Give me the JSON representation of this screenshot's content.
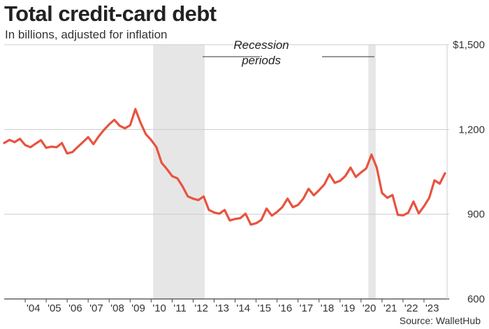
{
  "header": {
    "title": "Total credit-card debt",
    "subtitle": "In billions, adjusted for inflation"
  },
  "footer": {
    "source": "Source: WalletHub"
  },
  "colors": {
    "line": "#e8533f",
    "recession": "#e6e6e6",
    "grid": "#cccccc",
    "axis": "#444444"
  },
  "chart_data": {
    "type": "line",
    "title": "Total credit-card debt",
    "subtitle": "In billions, adjusted for inflation",
    "xlabel": "",
    "ylabel": "",
    "ylim": [
      600,
      1500
    ],
    "xlim": [
      2003.0,
      2024.1
    ],
    "y_ticks": [
      1500,
      1200,
      900,
      600
    ],
    "y_tick_labels": [
      "$1,500",
      "1,200",
      "900",
      "600"
    ],
    "x_ticks": [
      2004,
      2005,
      2006,
      2007,
      2008,
      2009,
      2010,
      2011,
      2012,
      2013,
      2014,
      2015,
      2016,
      2017,
      2018,
      2019,
      2020,
      2021,
      2022,
      2023
    ],
    "x_tick_labels": [
      "'04",
      "'05",
      "'06",
      "'07",
      "'08",
      "'09",
      "'10",
      "'11",
      "'12",
      "'13",
      "'14",
      "'15",
      "'16",
      "'17",
      "'18",
      "'19",
      "'20",
      "'21",
      "'22",
      "'23"
    ],
    "grid": true,
    "legend": "none",
    "recessions": [
      {
        "start": 2010.1,
        "end": 2012.55
      },
      {
        "start": 2020.35,
        "end": 2020.7
      }
    ],
    "annotations": [
      {
        "text_lines": [
          "Recession",
          "periods"
        ],
        "x": 2015.25,
        "y": 1470
      }
    ],
    "series": [
      {
        "x": [
          2003.0,
          2003.25,
          2003.5,
          2003.75,
          2004.0,
          2004.25,
          2004.5,
          2004.75,
          2005.0,
          2005.25,
          2005.5,
          2005.75,
          2006.0,
          2006.25,
          2006.5,
          2006.75,
          2007.0,
          2007.25,
          2007.5,
          2007.75,
          2008.0,
          2008.25,
          2008.5,
          2008.75,
          2009.0,
          2009.25,
          2009.5,
          2009.75,
          2010.0,
          2010.25,
          2010.5,
          2010.75,
          2011.0,
          2011.25,
          2011.5,
          2011.75,
          2012.0,
          2012.25,
          2012.5,
          2012.75,
          2013.0,
          2013.25,
          2013.5,
          2013.75,
          2014.0,
          2014.25,
          2014.5,
          2014.75,
          2015.0,
          2015.25,
          2015.5,
          2015.75,
          2016.0,
          2016.25,
          2016.5,
          2016.75,
          2017.0,
          2017.25,
          2017.5,
          2017.75,
          2018.0,
          2018.25,
          2018.5,
          2018.75,
          2019.0,
          2019.25,
          2019.5,
          2019.75,
          2020.0,
          2020.25,
          2020.5,
          2020.75,
          2021.0,
          2021.25,
          2021.5,
          2021.75,
          2022.0,
          2022.25,
          2022.5,
          2022.75,
          2023.0,
          2023.25,
          2023.5,
          2023.75,
          2024.0
        ],
        "values": [
          1152,
          1163,
          1155,
          1167,
          1145,
          1137,
          1150,
          1162,
          1135,
          1139,
          1137,
          1152,
          1115,
          1120,
          1138,
          1155,
          1173,
          1148,
          1175,
          1198,
          1218,
          1234,
          1213,
          1204,
          1215,
          1272,
          1223,
          1183,
          1163,
          1138,
          1082,
          1060,
          1035,
          1027,
          998,
          963,
          955,
          950,
          963,
          915,
          906,
          902,
          915,
          878,
          883,
          886,
          902,
          863,
          868,
          880,
          920,
          895,
          908,
          925,
          955,
          925,
          933,
          955,
          990,
          967,
          985,
          1005,
          1041,
          1011,
          1018,
          1035,
          1065,
          1032,
          1048,
          1062,
          1111,
          1065,
          975,
          958,
          968,
          898,
          896,
          905,
          945,
          903,
          928,
          958,
          1020,
          1008,
          1045
        ]
      }
    ]
  }
}
